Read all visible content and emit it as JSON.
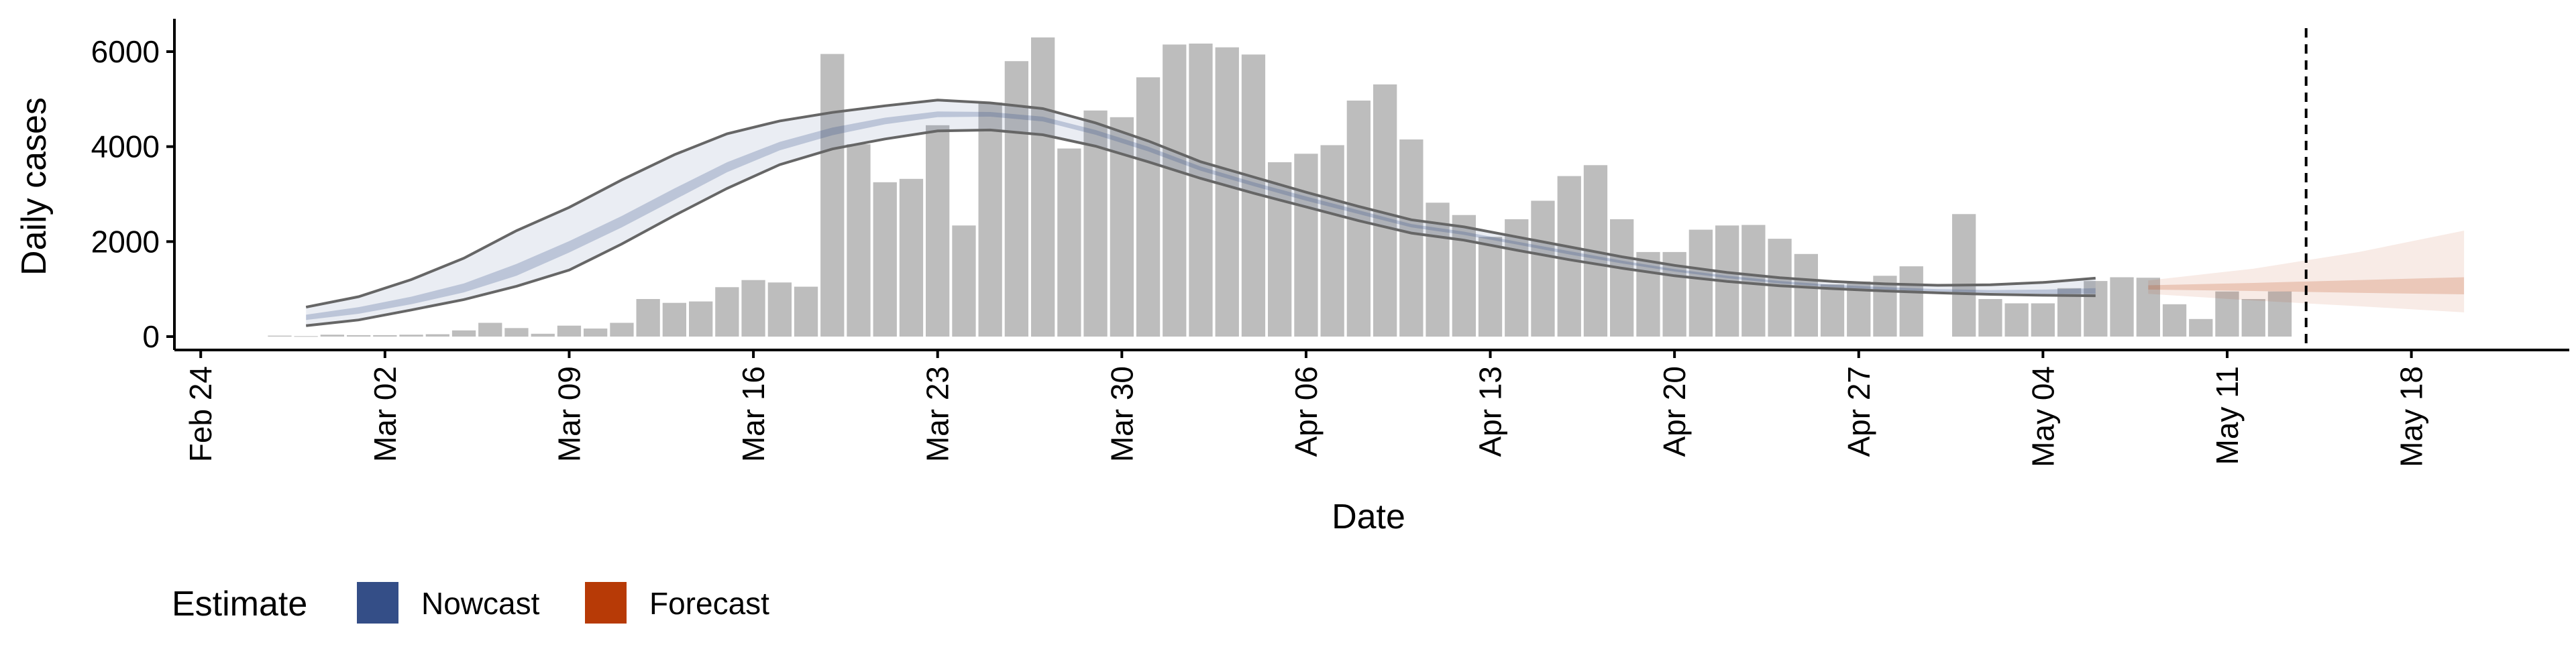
{
  "chart_data": {
    "type": "bar",
    "xlabel": "Date",
    "ylabel": "Daily cases",
    "ylim": [
      0,
      6600
    ],
    "yticks": [
      0,
      2000,
      4000,
      6000
    ],
    "xticks": [
      {
        "date": "2020-02-24",
        "label": "Feb 24"
      },
      {
        "date": "2020-03-02",
        "label": "Mar 02"
      },
      {
        "date": "2020-03-09",
        "label": "Mar 09"
      },
      {
        "date": "2020-03-16",
        "label": "Mar 16"
      },
      {
        "date": "2020-03-23",
        "label": "Mar 23"
      },
      {
        "date": "2020-03-30",
        "label": "Mar 30"
      },
      {
        "date": "2020-04-06",
        "label": "Apr 06"
      },
      {
        "date": "2020-04-13",
        "label": "Apr 13"
      },
      {
        "date": "2020-04-20",
        "label": "Apr 20"
      },
      {
        "date": "2020-04-27",
        "label": "Apr 27"
      },
      {
        "date": "2020-05-04",
        "label": "May 04"
      },
      {
        "date": "2020-05-11",
        "label": "May 11"
      },
      {
        "date": "2020-05-18",
        "label": "May 18"
      }
    ],
    "xlim": [
      "2020-02-23",
      "2020-05-24"
    ],
    "grid": false,
    "legend_position": "bottom-left",
    "reported_cases": {
      "start_date": "2020-02-27",
      "values": [
        20,
        10,
        40,
        30,
        30,
        40,
        50,
        130,
        290,
        180,
        60,
        230,
        170,
        290,
        790,
        710,
        740,
        1040,
        1190,
        1140,
        1050,
        5950,
        4050,
        3250,
        3320,
        4450,
        2340,
        4930,
        5800,
        6300,
        3960,
        4760,
        4620,
        5460,
        6150,
        6170,
        6090,
        5940,
        3670,
        3850,
        4030,
        4970,
        5310,
        4150,
        2820,
        2560,
        2100,
        2470,
        2860,
        3380,
        3610,
        2470,
        1780,
        1780,
        2250,
        2340,
        2350,
        2060,
        1740,
        1100,
        1160,
        1280,
        1480,
        null,
        2580,
        790,
        700,
        700,
        1020,
        1170,
        1250,
        1240,
        680,
        370,
        950,
        790,
        950
      ]
    },
    "nowcast": {
      "dates": [
        "2020-02-28",
        "2020-03-01",
        "2020-03-03",
        "2020-03-05",
        "2020-03-07",
        "2020-03-09",
        "2020-03-11",
        "2020-03-13",
        "2020-03-15",
        "2020-03-17",
        "2020-03-19",
        "2020-03-21",
        "2020-03-23",
        "2020-03-25",
        "2020-03-27",
        "2020-03-29",
        "2020-03-31",
        "2020-04-02",
        "2020-04-04",
        "2020-04-06",
        "2020-04-08",
        "2020-04-10",
        "2020-04-12",
        "2020-04-14",
        "2020-04-16",
        "2020-04-18",
        "2020-04-20",
        "2020-04-22",
        "2020-04-24",
        "2020-04-26",
        "2020-04-28",
        "2020-04-30",
        "2020-05-02",
        "2020-05-04",
        "2020-05-06"
      ],
      "lower_90": [
        230,
        350,
        560,
        780,
        1060,
        1400,
        1950,
        2550,
        3120,
        3620,
        3950,
        4160,
        4330,
        4350,
        4250,
        4010,
        3680,
        3330,
        3020,
        2730,
        2440,
        2180,
        2030,
        1820,
        1620,
        1440,
        1280,
        1160,
        1070,
        1010,
        960,
        920,
        890,
        870,
        860
      ],
      "lower_20": [
        350,
        480,
        680,
        930,
        1280,
        1770,
        2300,
        2880,
        3460,
        3920,
        4240,
        4470,
        4620,
        4630,
        4530,
        4250,
        3900,
        3490,
        3170,
        2860,
        2580,
        2300,
        2140,
        1940,
        1730,
        1540,
        1370,
        1230,
        1120,
        1040,
        990,
        950,
        920,
        900,
        900
      ],
      "median": [
        400,
        550,
        760,
        1030,
        1400,
        1890,
        2420,
        3000,
        3560,
        4010,
        4320,
        4540,
        4680,
        4680,
        4580,
        4300,
        3950,
        3530,
        3210,
        2900,
        2620,
        2330,
        2170,
        1960,
        1760,
        1570,
        1390,
        1250,
        1140,
        1060,
        1010,
        970,
        940,
        930,
        930
      ],
      "upper_20": [
        460,
        620,
        840,
        1120,
        1530,
        2010,
        2540,
        3120,
        3670,
        4100,
        4400,
        4610,
        4740,
        4730,
        4630,
        4350,
        4000,
        3580,
        3250,
        2950,
        2660,
        2370,
        2210,
        2000,
        1800,
        1600,
        1420,
        1280,
        1170,
        1090,
        1040,
        1000,
        980,
        990,
        1020
      ],
      "upper_90": [
        620,
        840,
        1200,
        1650,
        2230,
        2720,
        3300,
        3830,
        4270,
        4540,
        4720,
        4860,
        4980,
        4920,
        4800,
        4500,
        4120,
        3680,
        3360,
        3040,
        2740,
        2460,
        2310,
        2100,
        1890,
        1680,
        1500,
        1350,
        1240,
        1160,
        1110,
        1080,
        1090,
        1140,
        1230
      ]
    },
    "forecast": {
      "dates": [
        "2020-05-08",
        "2020-05-12",
        "2020-05-16",
        "2020-05-20"
      ],
      "lower_90": [
        900,
        760,
        640,
        510
      ],
      "lower_20": [
        990,
        960,
        920,
        890
      ],
      "median": [
        1030,
        1030,
        1030,
        1030
      ],
      "upper_20": [
        1080,
        1130,
        1190,
        1250
      ],
      "upper_90": [
        1180,
        1430,
        1780,
        2230
      ]
    },
    "vline_date": "2020-05-14",
    "legend": {
      "title": "Estimate",
      "items": [
        {
          "label": "Nowcast",
          "color": "#344e87"
        },
        {
          "label": "Forecast",
          "color": "#b73a06"
        }
      ]
    },
    "colors": {
      "bars": "#bdbdbd",
      "nowcast": "#344e87",
      "forecast": "#b73a06",
      "envelope_line": "#666666"
    }
  }
}
